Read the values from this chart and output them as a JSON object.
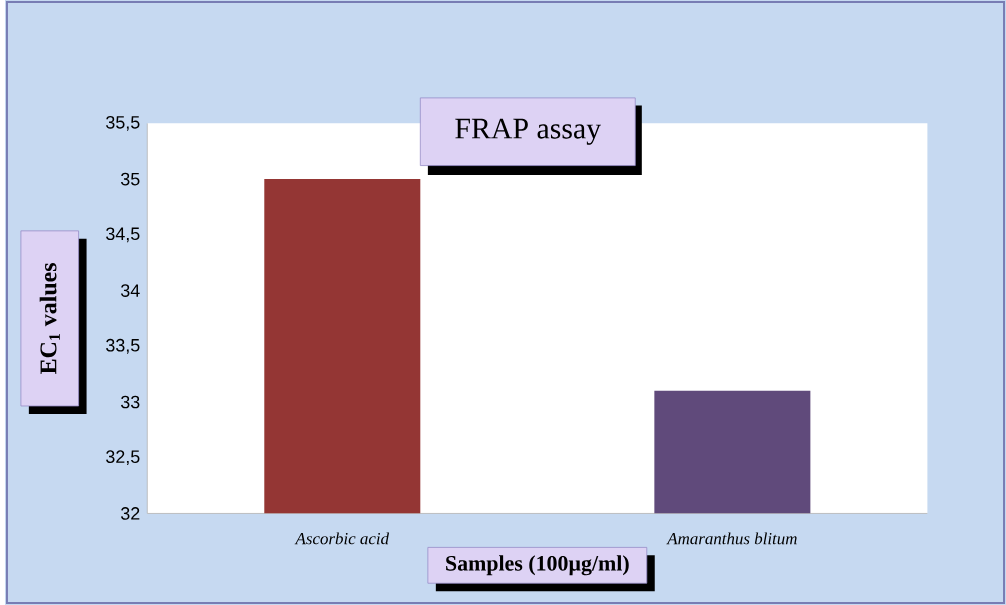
{
  "chart_data": {
    "type": "bar",
    "title": "FRAP assay",
    "xlabel": "Samples (100µg/ml)",
    "ylabel": "EC$_{1}$ values",
    "categories": [
      "*Ascorbic acid*",
      "*Amaranthus blitum*"
    ],
    "values": [
      35.0,
      33.1
    ],
    "colors": [
      "#943634",
      "#604a7b"
    ],
    "ylim": [
      32,
      35.5
    ],
    "yticks": [
      32,
      {
        "value": 32.5,
        "label": "32,5"
      },
      33,
      {
        "value": 33.5,
        "label": "33,5"
      },
      34,
      {
        "value": 34.5,
        "label": "34,5"
      },
      35,
      {
        "value": 35.5,
        "label": "35,5"
      }
    ],
    "grid": false
  }
}
